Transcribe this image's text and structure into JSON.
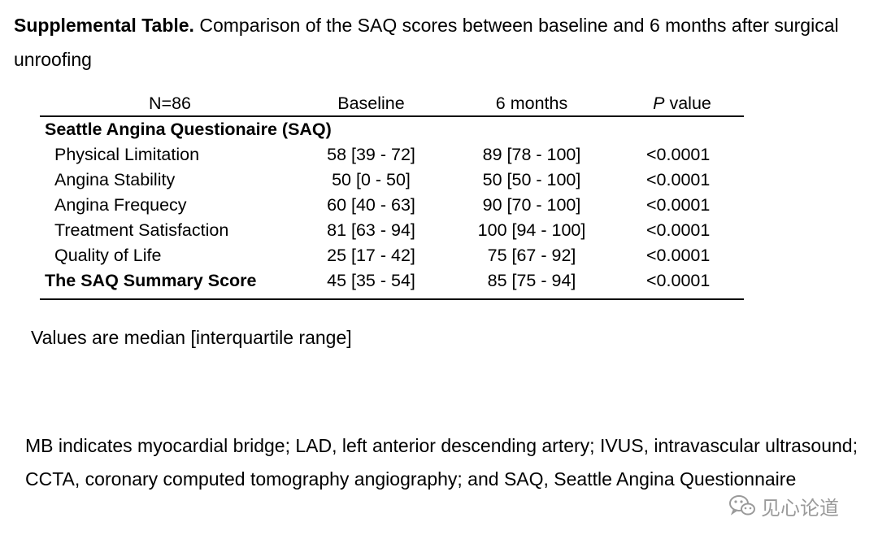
{
  "caption": {
    "label": "Supplemental Table.",
    "text": " Comparison of the SAQ scores between baseline and 6 months after surgical unroofing"
  },
  "table": {
    "headers": [
      "N=86",
      "Baseline",
      "6 months",
      "P",
      " value"
    ],
    "section_title": "Seattle Angina Questionaire (SAQ)",
    "rows": [
      {
        "label": "Physical Limitation",
        "baseline": "58 [39 - 72]",
        "months6": "89 [78 - 100]",
        "p": "<0.0001"
      },
      {
        "label": "Angina Stability",
        "baseline": "50 [0 - 50]",
        "months6": "50 [50 - 100]",
        "p": "<0.0001"
      },
      {
        "label": "Angina Frequecy",
        "baseline": "60 [40 - 63]",
        "months6": "90 [70 - 100]",
        "p": "<0.0001"
      },
      {
        "label": "Treatment Satisfaction",
        "baseline": "81 [63 - 94]",
        "months6": "100 [94 - 100]",
        "p": "<0.0001"
      },
      {
        "label": "Quality of Life",
        "baseline": "25 [17 - 42]",
        "months6": "75 [67 - 92]",
        "p": "<0.0001"
      },
      {
        "label": "The SAQ Summary Score",
        "baseline": "45 [35 - 54]",
        "months6": "85 [75 - 94]",
        "p": "<0.0001"
      }
    ]
  },
  "note": "Values are median [interquartile range]",
  "abbreviations": "MB indicates myocardial bridge; LAD, left anterior descending artery; IVUS, intravascular ultrasound; CCTA, coronary computed tomography angiography; and SAQ, Seattle Angina Questionnaire",
  "watermark": {
    "text": "见心论道",
    "icon": "wechat-icon",
    "color": "#9a9a9a"
  }
}
